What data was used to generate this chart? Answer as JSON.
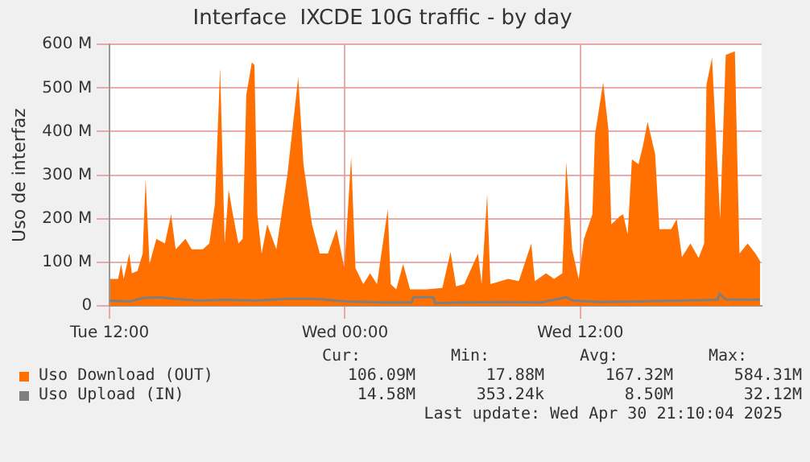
{
  "chart_data": {
    "type": "area",
    "title": "Interface  IXCDE 10G traffic - by day",
    "ylabel": "Uso de interfaz",
    "x": [
      "2025-04-29T12:02",
      "2025-04-29T12:26",
      "2025-04-29T12:35",
      "2025-04-29T12:43",
      "2025-04-29T13:00",
      "2025-04-29T13:08",
      "2025-04-29T13:25",
      "2025-04-29T13:41",
      "2025-04-29T13:50",
      "2025-04-29T14:02",
      "2025-04-29T14:23",
      "2025-04-29T14:49",
      "2025-04-29T15:08",
      "2025-04-29T15:22",
      "2025-04-29T15:52",
      "2025-04-29T16:11",
      "2025-04-29T16:45",
      "2025-04-29T17:05",
      "2025-04-29T17:22",
      "2025-04-29T17:38",
      "2025-04-29T17:52",
      "2025-04-29T18:04",
      "2025-04-29T18:17",
      "2025-04-29T18:34",
      "2025-04-29T18:47",
      "2025-04-29T18:58",
      "2025-04-29T19:15",
      "2025-04-29T19:23",
      "2025-04-29T19:32",
      "2025-04-29T19:45",
      "2025-04-29T20:02",
      "2025-04-29T20:30",
      "2025-04-29T21:04",
      "2025-04-29T21:37",
      "2025-04-29T21:53",
      "2025-04-29T22:19",
      "2025-04-29T22:43",
      "2025-04-29T23:08",
      "2025-04-29T23:34",
      "2025-04-29T23:58",
      "2025-04-30T00:19",
      "2025-04-30T00:32",
      "2025-04-30T00:56",
      "2025-04-30T01:17",
      "2025-04-30T01:38",
      "2025-04-30T02:11",
      "2025-04-30T02:20",
      "2025-04-30T02:37",
      "2025-04-30T02:58",
      "2025-04-30T03:19",
      "2025-04-30T04:08",
      "2025-04-30T04:58",
      "2025-04-30T05:23",
      "2025-04-30T05:40",
      "2025-04-30T06:05",
      "2025-04-30T06:47",
      "2025-04-30T06:58",
      "2025-04-30T07:15",
      "2025-04-30T07:25",
      "2025-04-30T08:19",
      "2025-04-30T08:52",
      "2025-04-30T09:30",
      "2025-04-30T09:41",
      "2025-04-30T10:15",
      "2025-04-30T10:40",
      "2025-04-30T11:05",
      "2025-04-30T11:17",
      "2025-04-30T11:35",
      "2025-04-30T11:55",
      "2025-04-30T12:11",
      "2025-04-30T12:37",
      "2025-04-30T12:45",
      "2025-04-30T13:10",
      "2025-04-30T13:26",
      "2025-04-30T13:35",
      "2025-04-30T14:00",
      "2025-04-30T14:11",
      "2025-04-30T14:25",
      "2025-04-30T14:38",
      "2025-04-30T14:58",
      "2025-04-30T15:11",
      "2025-04-30T15:26",
      "2025-04-30T15:49",
      "2025-04-30T16:02",
      "2025-04-30T16:22",
      "2025-04-30T16:38",
      "2025-04-30T16:55",
      "2025-04-30T17:11",
      "2025-04-30T17:37",
      "2025-04-30T18:02",
      "2025-04-30T18:19",
      "2025-04-30T18:26",
      "2025-04-30T18:43",
      "2025-04-30T19:00",
      "2025-04-30T19:08",
      "2025-04-30T19:25",
      "2025-04-30T19:53",
      "2025-04-30T20:07",
      "2025-04-30T20:32",
      "2025-04-30T20:56",
      "2025-04-30T21:10"
    ],
    "series": [
      {
        "name": "Uso Download (OUT)",
        "type": "area",
        "color": "#ff7000",
        "values": [
          62,
          62,
          96,
          62,
          120,
          75,
          80,
          120,
          291,
          96,
          154,
          143,
          210,
          130,
          154,
          130,
          130,
          143,
          233,
          547,
          143,
          267,
          210,
          143,
          154,
          484,
          559,
          553,
          210,
          120,
          187,
          130,
          302,
          525,
          325,
          187,
          120,
          120,
          176,
          87,
          342,
          87,
          50,
          75,
          50,
          222,
          50,
          38,
          96,
          38,
          38,
          41,
          124,
          45,
          50,
          120,
          50,
          256,
          50,
          62,
          57,
          143,
          57,
          75,
          62,
          75,
          330,
          130,
          62,
          153,
          210,
          393,
          513,
          405,
          187,
          205,
          210,
          164,
          336,
          325,
          365,
          422,
          348,
          176,
          176,
          176,
          199,
          112,
          143,
          110,
          143,
          507,
          570,
          316,
          199,
          576,
          584,
          120,
          143,
          120,
          103
        ]
      },
      {
        "name": "Uso Upload (IN)",
        "type": "line",
        "color": "#7f7f7f",
        "x": [
          "2025-04-29T12:00",
          "2025-04-29T13:00",
          "2025-04-29T13:42",
          "2025-04-29T14:30",
          "2025-04-29T15:18",
          "2025-04-29T16:30",
          "2025-04-29T18:00",
          "2025-04-29T19:30",
          "2025-04-29T21:00",
          "2025-04-29T22:30",
          "2025-04-30T00:00",
          "2025-04-30T02:00",
          "2025-04-30T03:24",
          "2025-04-30T03:30",
          "2025-04-30T04:30",
          "2025-04-30T04:36",
          "2025-04-30T06:00",
          "2025-04-30T08:00",
          "2025-04-30T10:00",
          "2025-04-30T11:18",
          "2025-04-30T11:36",
          "2025-04-30T13:00",
          "2025-04-30T15:00",
          "2025-04-30T17:00",
          "2025-04-30T19:00",
          "2025-04-30T19:06",
          "2025-04-30T19:24",
          "2025-04-30T21:00",
          "2025-04-30T21:10"
        ],
        "values": [
          12,
          10,
          18,
          20,
          16,
          12,
          14,
          12,
          16,
          16,
          10,
          8,
          8,
          20,
          20,
          6,
          8,
          9,
          8,
          20,
          12,
          9,
          10,
          12,
          14,
          28,
          15,
          14,
          15
        ]
      }
    ],
    "xlim": [
      "2025-04-29T12:00",
      "2025-04-30T21:15"
    ],
    "xticks": [
      {
        "value": "2025-04-29T12:00",
        "label": "Tue 12:00"
      },
      {
        "value": "2025-04-30T00:00",
        "label": "Wed 00:00"
      },
      {
        "value": "2025-04-30T12:00",
        "label": "Wed 12:00"
      }
    ],
    "ylim": [
      0,
      600
    ],
    "yticks": [
      0,
      {
        "value": 100,
        "label": "100 M"
      },
      {
        "value": 200,
        "label": "200 M"
      },
      {
        "value": 300,
        "label": "300 M"
      },
      {
        "value": 400,
        "label": "400 M"
      },
      {
        "value": 500,
        "label": "500 M"
      },
      {
        "value": 600,
        "label": "600 M"
      }
    ],
    "grid": true,
    "legend": "bottom",
    "annotations": [
      "Cur:",
      "Min:",
      "Avg:",
      "Max:",
      "106.09M",
      "17.88M",
      "167.32M",
      "584.31M",
      "14.58M",
      "353.24k",
      "8.50M",
      "32.12M",
      "Last update: Wed Apr 30 21:10:04 2025"
    ]
  }
}
